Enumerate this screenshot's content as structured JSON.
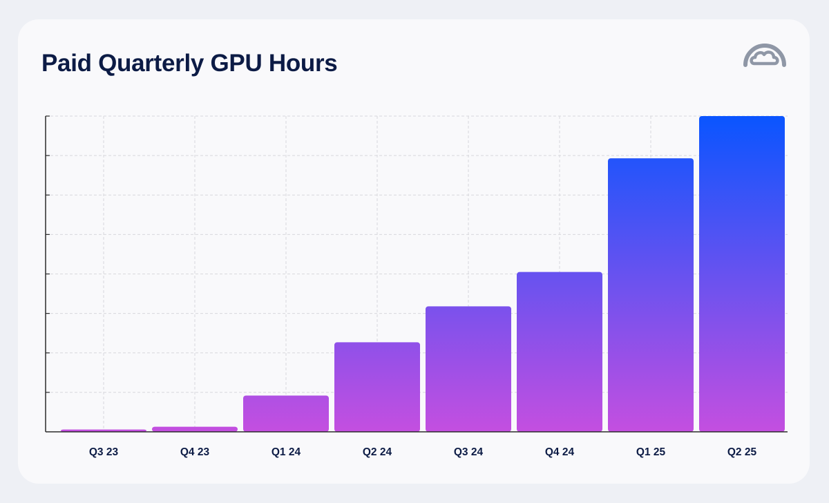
{
  "title": "Paid Quarterly GPU Hours",
  "logo_icon": "cloud-arch-logo-icon",
  "colors": {
    "title": "#0c1b45",
    "bar_top": "#0a55ff",
    "bar_bottom": "#c44fe0",
    "grid": "#d8d8dc",
    "axis": "#2a2a2a"
  },
  "chart_data": {
    "type": "bar",
    "title": "Paid Quarterly GPU Hours",
    "xlabel": "",
    "ylabel": "",
    "categories": [
      "Q3 23",
      "Q4 23",
      "Q1 24",
      "Q2 24",
      "Q3 24",
      "Q4 24",
      "Q1 25",
      "Q2 25"
    ],
    "values": [
      0.6,
      1.3,
      9.2,
      22.7,
      31.8,
      40.5,
      69.3,
      80.0
    ],
    "ylim": [
      0,
      80
    ],
    "yticks": [
      0,
      10,
      20,
      30,
      40,
      50,
      60,
      70,
      80
    ],
    "ytick_labels_shown": false,
    "grid": true,
    "legend": "none",
    "bar_fill": "vertical gradient blue-to-magenta"
  }
}
